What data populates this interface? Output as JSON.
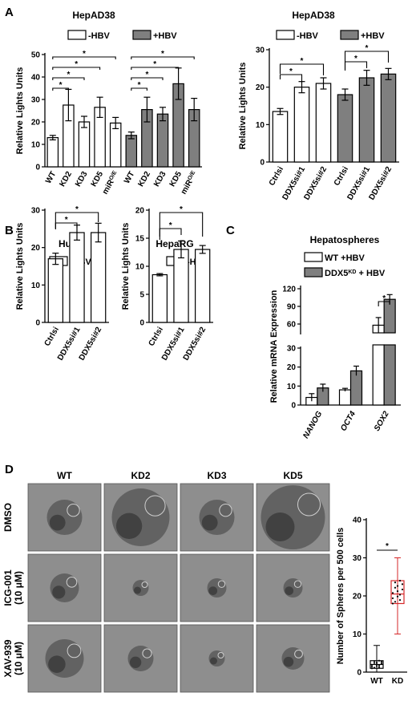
{
  "panels": {
    "A": "A",
    "B": "B",
    "C": "C",
    "D": "D"
  },
  "colors": {
    "white_bar": "#ffffff",
    "gray_bar": "#7f7f7f",
    "box_red": "#d62728",
    "micro_bg": "#8e8e8e"
  },
  "chart_data": [
    {
      "id": "A1",
      "type": "bar",
      "title": "HepAD38",
      "ylabel": "Relative Lights Units",
      "ylim": [
        0,
        50
      ],
      "yticks": [
        0,
        10,
        20,
        30,
        40,
        50
      ],
      "legend": [
        "-HBV",
        "+HBV"
      ],
      "categories": [
        "WT",
        "KD2",
        "KD3",
        "KD5",
        "miR^O/E",
        "WT",
        "KD2",
        "KD3",
        "KD5",
        "miR^O/E"
      ],
      "values": [
        13,
        27.5,
        20,
        26.5,
        19.5,
        14,
        25.5,
        23.5,
        37,
        25.5
      ],
      "errors": [
        1,
        7,
        2.5,
        4.5,
        2.5,
        1.5,
        5.5,
        3,
        7,
        5
      ],
      "series_of": [
        0,
        0,
        0,
        0,
        0,
        1,
        1,
        1,
        1,
        1
      ],
      "significance": [
        "*",
        "*",
        "*",
        "*",
        "*",
        "*",
        "*",
        "*"
      ]
    },
    {
      "id": "A2",
      "type": "bar",
      "title": "HepAD38",
      "ylabel": "Relative Lights Units",
      "ylim": [
        0,
        30
      ],
      "yticks": [
        0,
        10,
        20,
        30
      ],
      "legend": [
        "-HBV",
        "+HBV"
      ],
      "categories": [
        "Ctrlsi",
        "DDX5si#1",
        "DDX5si#2",
        "Ctrlsi",
        "DDX5si#1",
        "DDX5si#2"
      ],
      "values": [
        13.5,
        20,
        21,
        18,
        22.5,
        23.5
      ],
      "errors": [
        0.8,
        1.5,
        1.5,
        1.5,
        2,
        1.5
      ],
      "series_of": [
        0,
        0,
        0,
        1,
        1,
        1
      ],
      "significance": [
        "*",
        "*",
        "*",
        "*"
      ]
    },
    {
      "id": "B1",
      "type": "bar",
      "title": "Huh7",
      "ylabel": "Relative Lights Units",
      "ylim": [
        0,
        30
      ],
      "yticks": [
        0,
        10,
        20,
        30
      ],
      "legend": [
        "-HBV"
      ],
      "categories": [
        "Ctrlsi",
        "DDX5si#1",
        "DDX5si#2"
      ],
      "values": [
        17,
        24,
        24
      ],
      "errors": [
        1.5,
        2,
        2.5
      ],
      "series_of": [
        0,
        0,
        0
      ],
      "significance": [
        "*",
        "*"
      ]
    },
    {
      "id": "B2",
      "type": "bar",
      "title": "HepaRG",
      "ylabel": "Relative Lights Units",
      "ylim": [
        0,
        20
      ],
      "yticks": [
        0,
        5,
        10,
        15,
        20
      ],
      "legend": [
        "-HBV"
      ],
      "categories": [
        "Ctrlsi",
        "DDX5si#1",
        "DDX5si#2"
      ],
      "values": [
        8.5,
        13,
        13
      ],
      "errors": [
        0.2,
        1.5,
        0.7
      ],
      "series_of": [
        0,
        0,
        0
      ],
      "significance": [
        "*",
        "*"
      ]
    },
    {
      "id": "C",
      "type": "bar",
      "title": "Hepatospheres",
      "ylabel": "Relative mRNA Expression",
      "legend": [
        "WT +HBV",
        "DDX5^KD + HBV"
      ],
      "categories": [
        "NANOG",
        "OCT4",
        "SOX2"
      ],
      "series": [
        {
          "name": "WT +HBV",
          "values": [
            4,
            8,
            58
          ],
          "errors": [
            2,
            0.8,
            13
          ]
        },
        {
          "name": "DDX5^KD + HBV",
          "values": [
            9,
            18,
            102
          ],
          "errors": [
            2,
            2.5,
            8
          ]
        }
      ],
      "yticks_lower": [
        0,
        10,
        20,
        30
      ],
      "yticks_upper": [
        60,
        90,
        120
      ],
      "significance": [
        "*"
      ]
    },
    {
      "id": "D",
      "type": "box",
      "ylabel": "Number of Spheres per 500 cells",
      "ylim": [
        0,
        40
      ],
      "yticks": [
        0,
        10,
        20,
        30,
        40
      ],
      "categories": [
        "WT",
        "KD"
      ],
      "boxes": [
        {
          "min": 0,
          "q1": 1,
          "median": 2,
          "q3": 3,
          "max": 7
        },
        {
          "min": 10,
          "q1": 18,
          "median": 20.5,
          "q3": 24,
          "max": 30
        }
      ],
      "significance": [
        "*"
      ]
    }
  ],
  "micrographs": {
    "columns": [
      "WT",
      "KD2",
      "KD3",
      "KD5"
    ],
    "rows": [
      "DMSO",
      "ICG-001\n(10 μM)",
      "XAV-939\n(10 μM)"
    ]
  }
}
